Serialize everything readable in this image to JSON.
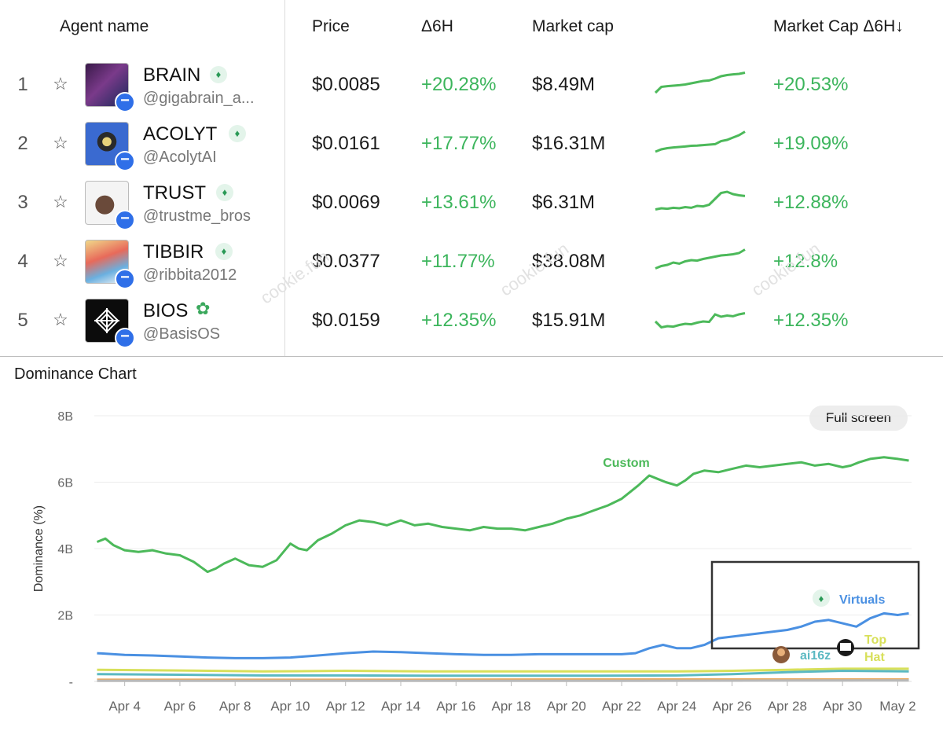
{
  "table": {
    "headers": {
      "agent_name": "Agent name",
      "price": "Price",
      "change_6h": "Δ6H",
      "market_cap": "Market cap",
      "market_cap_change": "Market Cap Δ6H↓"
    },
    "rows": [
      {
        "rank": "1",
        "name": "BRAIN",
        "handle": "@gigabrain_a...",
        "price": "$0.0085",
        "change": "+20.28%",
        "mcap": "$8.49M",
        "mcap_change": "+20.53%",
        "badge": "verified-icon"
      },
      {
        "rank": "2",
        "name": "ACOLYT",
        "handle": "@AcolytAI",
        "price": "$0.0161",
        "change": "+17.77%",
        "mcap": "$16.31M",
        "mcap_change": "+19.09%",
        "badge": "verified-icon"
      },
      {
        "rank": "3",
        "name": "TRUST",
        "handle": "@trustme_bros",
        "price": "$0.0069",
        "change": "+13.61%",
        "mcap": "$6.31M",
        "mcap_change": "+12.88%",
        "badge": "verified-icon"
      },
      {
        "rank": "4",
        "name": "TIBBIR",
        "handle": "@ribbita2012",
        "price": "$0.0377",
        "change": "+11.77%",
        "mcap": "$38.08M",
        "mcap_change": "+12.8%",
        "badge": "verified-icon"
      },
      {
        "rank": "5",
        "name": "BIOS",
        "handle": "@BasisOS",
        "price": "$0.0159",
        "change": "+12.35%",
        "mcap": "$15.91M",
        "mcap_change": "+12.35%",
        "badge": "sprout-icon"
      }
    ],
    "sparklines": [
      [
        0.1,
        0.35,
        0.38,
        0.4,
        0.42,
        0.45,
        0.5,
        0.55,
        0.6,
        0.62,
        0.7,
        0.8,
        0.85,
        0.88,
        0.9,
        0.95
      ],
      [
        0.1,
        0.2,
        0.25,
        0.28,
        0.3,
        0.32,
        0.35,
        0.36,
        0.38,
        0.4,
        0.42,
        0.55,
        0.6,
        0.7,
        0.8,
        0.95
      ],
      [
        0.15,
        0.2,
        0.18,
        0.22,
        0.2,
        0.25,
        0.22,
        0.3,
        0.28,
        0.35,
        0.6,
        0.85,
        0.9,
        0.8,
        0.75,
        0.72
      ],
      [
        0.15,
        0.25,
        0.3,
        0.4,
        0.35,
        0.45,
        0.5,
        0.48,
        0.55,
        0.6,
        0.65,
        0.7,
        0.72,
        0.75,
        0.8,
        0.95
      ],
      [
        0.4,
        0.15,
        0.2,
        0.18,
        0.25,
        0.3,
        0.28,
        0.35,
        0.4,
        0.38,
        0.7,
        0.6,
        0.65,
        0.62,
        0.7,
        0.75
      ]
    ],
    "watermark": "cookie.fun"
  },
  "chart_title": "Dominance Chart",
  "full_screen_label": "Full screen",
  "chart_data": {
    "type": "line",
    "title": "Dominance Chart",
    "xlabel": "",
    "ylabel": "Dominance (%)",
    "y_ticks": [
      "8B",
      "6B",
      "4B",
      "2B",
      "-"
    ],
    "ylim": [
      0,
      8
    ],
    "x_ticks": [
      "Apr 4",
      "Apr 6",
      "Apr 8",
      "Apr 10",
      "Apr 12",
      "Apr 14",
      "Apr 16",
      "Apr 18",
      "Apr 20",
      "Apr 22",
      "Apr 24",
      "Apr 26",
      "Apr 28",
      "Apr 30",
      "May 2"
    ],
    "xlim": [
      2.9,
      32.5
    ],
    "grid": "horizontal",
    "series": [
      {
        "name": "Custom",
        "color": "#4cb95a",
        "x": [
          3.0,
          3.3,
          3.6,
          4.0,
          4.5,
          5.0,
          5.5,
          6.0,
          6.5,
          7.0,
          7.3,
          7.6,
          8.0,
          8.5,
          9.0,
          9.5,
          10.0,
          10.3,
          10.6,
          11.0,
          11.5,
          12.0,
          12.5,
          13.0,
          13.5,
          14.0,
          14.5,
          15.0,
          15.5,
          16.0,
          16.5,
          17.0,
          17.5,
          18.0,
          18.5,
          19.0,
          19.5,
          20.0,
          20.5,
          21.0,
          21.5,
          22.0,
          22.3,
          22.6,
          23.0,
          23.3,
          23.6,
          24.0,
          24.3,
          24.6,
          25.0,
          25.5,
          26.0,
          26.5,
          27.0,
          27.5,
          28.0,
          28.5,
          29.0,
          29.5,
          30.0,
          30.3,
          30.6,
          31.0,
          31.5,
          32.0,
          32.4
        ],
        "y": [
          4.2,
          4.3,
          4.1,
          3.95,
          3.9,
          3.95,
          3.85,
          3.8,
          3.6,
          3.3,
          3.4,
          3.55,
          3.7,
          3.5,
          3.45,
          3.65,
          4.15,
          4.0,
          3.95,
          4.25,
          4.45,
          4.7,
          4.85,
          4.8,
          4.7,
          4.85,
          4.7,
          4.75,
          4.65,
          4.6,
          4.55,
          4.65,
          4.6,
          4.6,
          4.55,
          4.65,
          4.75,
          4.9,
          5.0,
          5.15,
          5.3,
          5.5,
          5.7,
          5.9,
          6.2,
          6.1,
          6.0,
          5.9,
          6.05,
          6.25,
          6.35,
          6.3,
          6.4,
          6.5,
          6.45,
          6.5,
          6.55,
          6.6,
          6.5,
          6.55,
          6.45,
          6.5,
          6.6,
          6.7,
          6.75,
          6.7,
          6.65
        ]
      },
      {
        "name": "Virtuals",
        "color": "#4a90e2",
        "x": [
          3.0,
          4.0,
          5.0,
          6.0,
          7.0,
          8.0,
          9.0,
          10.0,
          11.0,
          12.0,
          13.0,
          14.0,
          15.0,
          16.0,
          17.0,
          18.0,
          19.0,
          20.0,
          21.0,
          22.0,
          22.5,
          23.0,
          23.5,
          24.0,
          24.5,
          25.0,
          25.5,
          26.0,
          26.5,
          27.0,
          27.5,
          28.0,
          28.5,
          29.0,
          29.5,
          30.0,
          30.5,
          31.0,
          31.5,
          32.0,
          32.4
        ],
        "y": [
          0.85,
          0.8,
          0.78,
          0.75,
          0.72,
          0.7,
          0.7,
          0.72,
          0.78,
          0.85,
          0.9,
          0.88,
          0.85,
          0.82,
          0.8,
          0.8,
          0.82,
          0.82,
          0.82,
          0.82,
          0.85,
          1.0,
          1.1,
          1.0,
          1.0,
          1.1,
          1.3,
          1.35,
          1.4,
          1.45,
          1.5,
          1.55,
          1.65,
          1.8,
          1.85,
          1.75,
          1.65,
          1.9,
          2.05,
          2.0,
          2.05
        ]
      },
      {
        "name": "Top Hat",
        "color": "#d8e05a",
        "x": [
          3.0,
          6.0,
          9.0,
          12.0,
          15.0,
          18.0,
          21.0,
          24.0,
          26.0,
          28.0,
          30.0,
          32.4
        ],
        "y": [
          0.35,
          0.33,
          0.3,
          0.32,
          0.3,
          0.3,
          0.3,
          0.3,
          0.32,
          0.35,
          0.38,
          0.38
        ]
      },
      {
        "name": "ai16z",
        "color": "#5bb9c2",
        "x": [
          3.0,
          6.0,
          9.0,
          12.0,
          15.0,
          18.0,
          21.0,
          24.0,
          26.0,
          28.0,
          30.0,
          32.4
        ],
        "y": [
          0.22,
          0.2,
          0.18,
          0.18,
          0.17,
          0.17,
          0.17,
          0.18,
          0.22,
          0.28,
          0.32,
          0.3
        ]
      },
      {
        "name": "",
        "color": "#e8a85c",
        "x": [
          3.0,
          12.0,
          22.0,
          32.4
        ],
        "y": [
          0.05,
          0.05,
          0.06,
          0.06
        ]
      },
      {
        "name": "",
        "color": "#b9b9b9",
        "x": [
          3.0,
          12.0,
          22.0,
          32.4
        ],
        "y": [
          0.02,
          0.02,
          0.02,
          0.03
        ]
      }
    ]
  }
}
